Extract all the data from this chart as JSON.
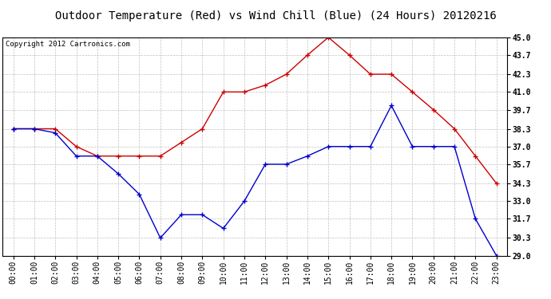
{
  "title": "Outdoor Temperature (Red) vs Wind Chill (Blue) (24 Hours) 20120216",
  "copyright_text": "Copyright 2012 Cartronics.com",
  "x_labels": [
    "00:00",
    "01:00",
    "02:00",
    "03:00",
    "04:00",
    "05:00",
    "06:00",
    "07:00",
    "08:00",
    "09:00",
    "10:00",
    "11:00",
    "12:00",
    "13:00",
    "14:00",
    "15:00",
    "16:00",
    "17:00",
    "18:00",
    "19:00",
    "20:00",
    "21:00",
    "22:00",
    "23:00"
  ],
  "red_temps": [
    38.3,
    38.3,
    38.3,
    37.0,
    36.3,
    36.3,
    36.3,
    36.3,
    37.3,
    38.3,
    41.0,
    41.0,
    41.5,
    42.3,
    43.7,
    45.0,
    43.7,
    42.3,
    42.3,
    41.0,
    39.7,
    38.3,
    36.3,
    34.3
  ],
  "blue_temps": [
    38.3,
    38.3,
    38.0,
    36.3,
    36.3,
    35.0,
    33.5,
    30.3,
    32.0,
    32.0,
    31.0,
    33.0,
    35.7,
    35.7,
    36.3,
    37.0,
    37.0,
    37.0,
    40.0,
    37.0,
    37.0,
    37.0,
    31.7,
    29.0
  ],
  "red_color": "#cc0000",
  "blue_color": "#0000cc",
  "background_color": "#ffffff",
  "grid_color": "#c0c0c0",
  "ylim_min": 29.0,
  "ylim_max": 45.0,
  "yticks": [
    29.0,
    30.3,
    31.7,
    33.0,
    34.3,
    35.7,
    37.0,
    38.3,
    39.7,
    41.0,
    42.3,
    43.7,
    45.0
  ],
  "title_fontsize": 10,
  "copyright_fontsize": 6.5,
  "tick_fontsize": 7
}
